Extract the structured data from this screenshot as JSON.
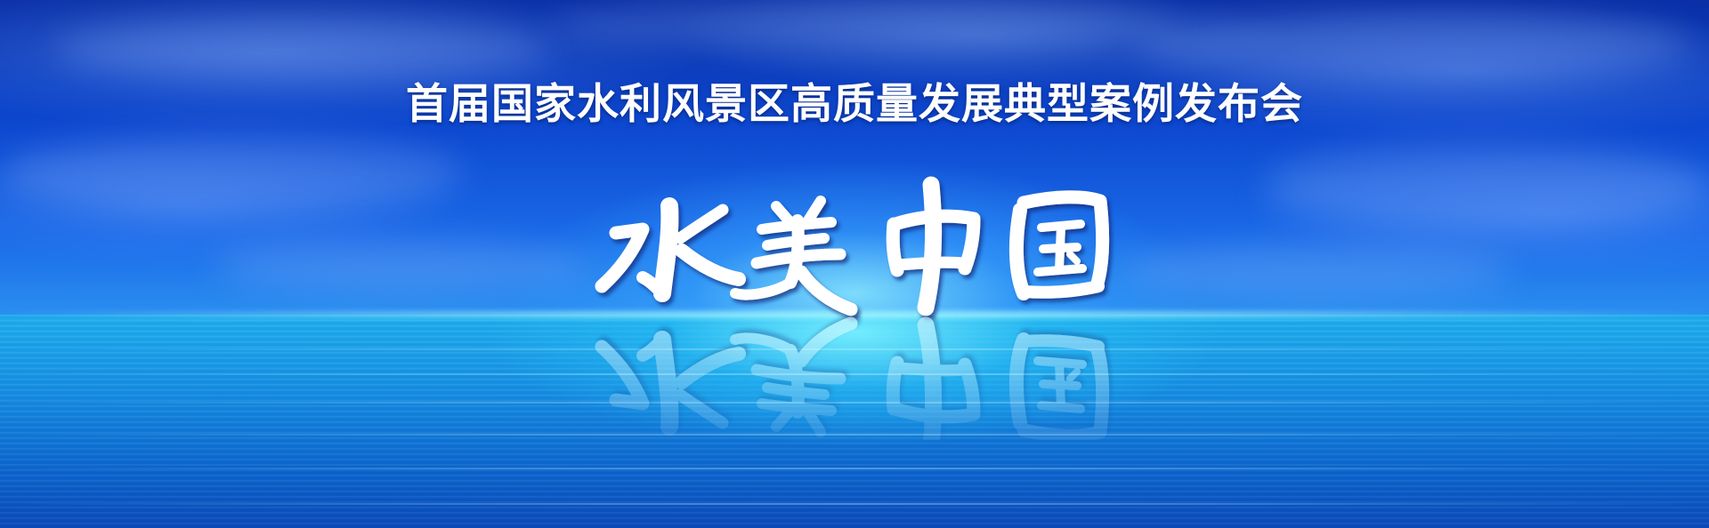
{
  "banner": {
    "headline": "首届国家水利风景区高质量发展典型案例发布会",
    "logo_text": "水美中国",
    "logo_characters": [
      "水",
      "美",
      "中",
      "国"
    ],
    "colors": {
      "sky_top": "#0a2fa6",
      "sky_horizon": "#2a8ef0",
      "sea_glow": "#78f0ff",
      "sea_deep": "#0a4ab8",
      "text": "#ffffff"
    }
  }
}
